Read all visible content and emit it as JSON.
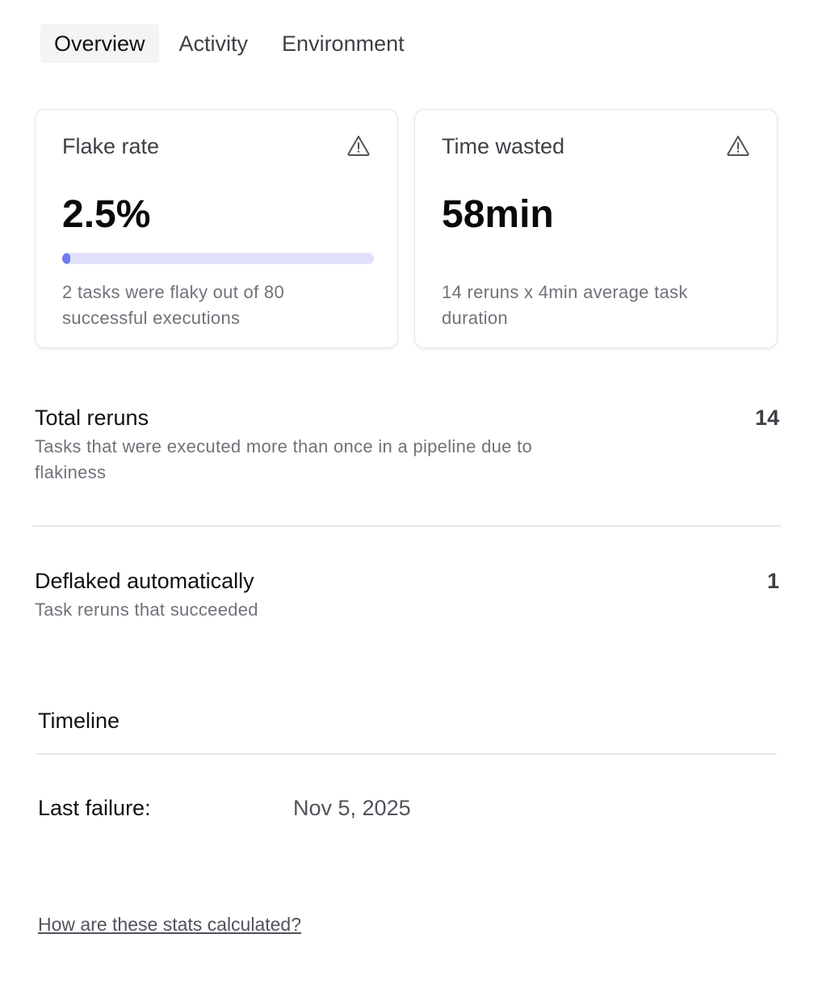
{
  "tabs": [
    {
      "label": "Overview",
      "active": true
    },
    {
      "label": "Activity",
      "active": false
    },
    {
      "label": "Environment",
      "active": false
    }
  ],
  "cards": [
    {
      "title": "Flake rate",
      "icon": "warning-triangle-icon",
      "value": "2.5%",
      "progress_percent": 2.5,
      "description": "2 tasks were flaky out of 80 successful executions"
    },
    {
      "title": "Time wasted",
      "icon": "warning-triangle-icon",
      "value": "58min",
      "description": "14 reruns x 4min average task duration"
    }
  ],
  "stats": [
    {
      "label": "Total reruns",
      "value": "14",
      "description": "Tasks that were executed more than once in a pipeline due to flakiness"
    },
    {
      "label": "Deflaked automatically",
      "value": "1",
      "description": "Task reruns that succeeded"
    }
  ],
  "timeline": {
    "title": "Timeline",
    "last_failure_label": "Last failure:",
    "last_failure_value": "Nov 5, 2025"
  },
  "help_link": "How are these stats calculated?",
  "colors": {
    "progress_fill": "#6e7bf2",
    "progress_track": "#e0e1fb"
  }
}
